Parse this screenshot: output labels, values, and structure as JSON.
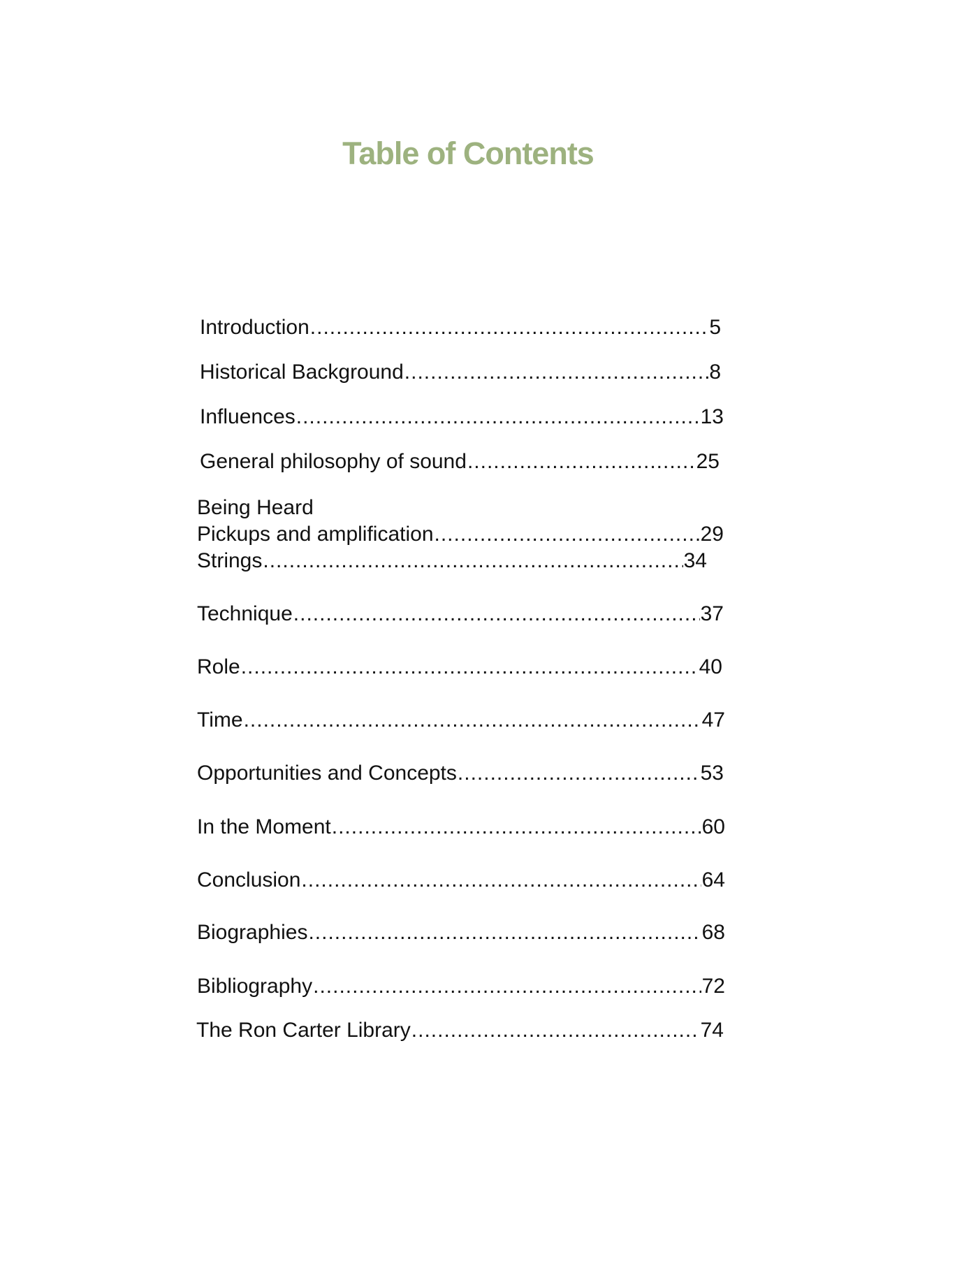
{
  "title": "Table of Contents",
  "colors": {
    "title": "#9db27f",
    "text": "#111111"
  },
  "entries": [
    {
      "label": "Introduction",
      "page": "5"
    },
    {
      "label": "Historical Background",
      "page": "8"
    },
    {
      "label": "Influences",
      "page": "13"
    },
    {
      "label": "General philosophy of sound",
      "page": "25"
    },
    {
      "label": "Pickups and amplification",
      "page": "29"
    },
    {
      "label": "Strings",
      "page": "34"
    },
    {
      "label": "Technique",
      "page": "37"
    },
    {
      "label": "Role",
      "page": "40"
    },
    {
      "label": "Time",
      "page": "47"
    },
    {
      "label": "Opportunities and Concepts",
      "page": "53"
    },
    {
      "label": "In the Moment",
      "page": "60"
    },
    {
      "label": "Conclusion",
      "page": "64"
    },
    {
      "label": "Biographies",
      "page": "68"
    },
    {
      "label": "Bibliography",
      "page": "72"
    },
    {
      "label": "The Ron Carter Library",
      "page": "74"
    }
  ],
  "section_heading": "Being Heard"
}
